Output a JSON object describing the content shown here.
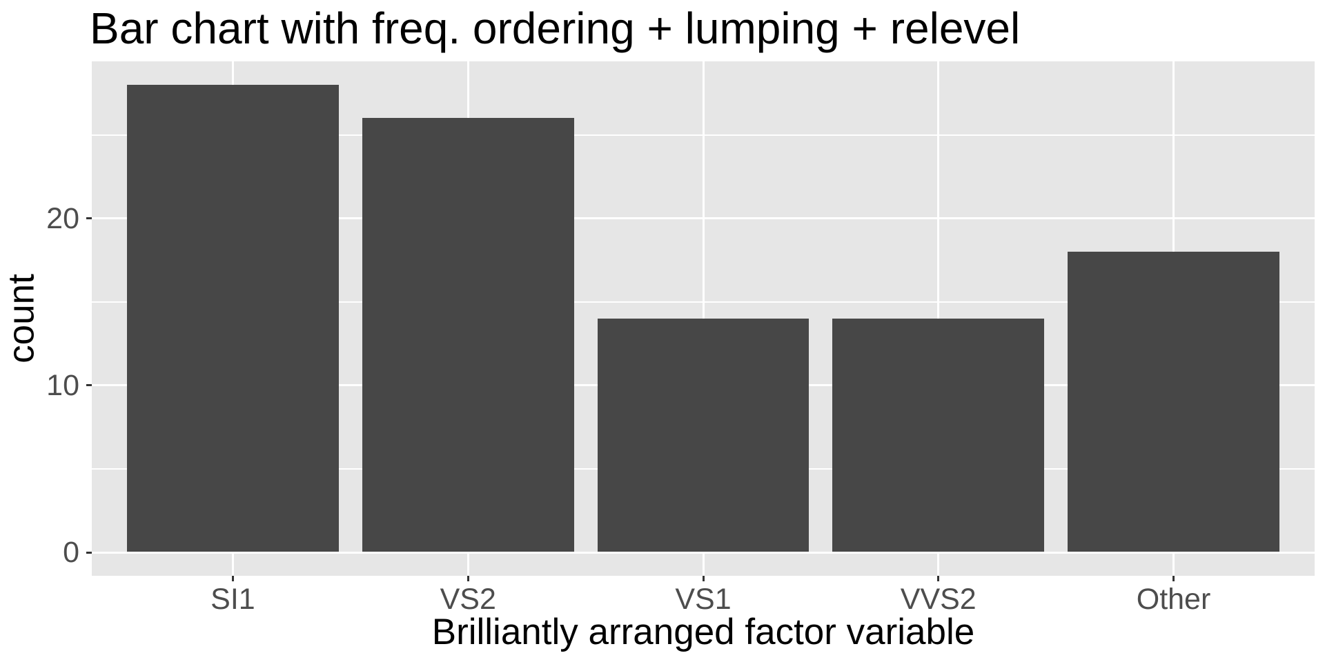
{
  "chart_data": {
    "type": "bar",
    "title": "Bar chart with freq. ordering + lumping + relevel",
    "xlabel": "Brilliantly arranged factor variable",
    "ylabel": "count",
    "categories": [
      "SI1",
      "VS2",
      "VS1",
      "VVS2",
      "Other"
    ],
    "values": [
      28,
      26,
      14,
      14,
      18
    ],
    "ylim": [
      -1.4,
      29.4
    ],
    "yticks": [
      0,
      10,
      20
    ],
    "yticks_minor": [
      5,
      15,
      25
    ],
    "bar_width_fraction": 0.9,
    "x_outer_expand": 0.6,
    "legend": "none",
    "grid": "major-and-minor-horizontal, major-vertical",
    "theme": "ggplot2-grey"
  },
  "colors": {
    "background": "#FFFFFF",
    "panel_bg": "#E6E6E6",
    "bar_fill": "#474747",
    "gridline": "#FFFFFF",
    "axis_text": "#4D4D4D",
    "tick_mark": "#333333",
    "title_text": "#000000",
    "axis_title_text": "#000000"
  }
}
